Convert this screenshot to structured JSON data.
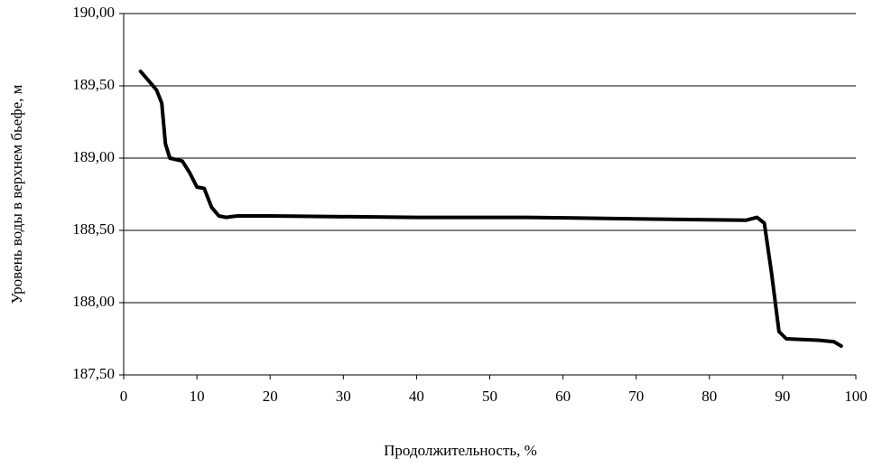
{
  "chart_data": {
    "type": "line",
    "x_label": "Продолжительность, %",
    "y_label": "Уровень воды в верхнем бьефе, м",
    "xlim": [
      0,
      100
    ],
    "xticks": [
      0,
      10,
      20,
      30,
      40,
      50,
      60,
      70,
      80,
      90,
      100
    ],
    "ylim": [
      187.5,
      190
    ],
    "yticks": [
      {
        "value": 187.5,
        "label": "187,50"
      },
      {
        "value": 188,
        "label": "188,00"
      },
      {
        "value": 188.5,
        "label": "188,50"
      },
      {
        "value": 189,
        "label": "189,00"
      },
      {
        "value": 189.5,
        "label": "189,50"
      },
      {
        "value": 190,
        "label": "190,00"
      }
    ],
    "grid": true,
    "series": [
      {
        "color": "#000000",
        "x": [
          2.3,
          3.5,
          4.5,
          5.2,
          5.7,
          6.3,
          8,
          9,
          10,
          11,
          12,
          13,
          14,
          15.5,
          20,
          40,
          55,
          70,
          85,
          86.5,
          87.5,
          88.5,
          89.5,
          90.5,
          95,
          97,
          98
        ],
        "values": [
          189.6,
          189.53,
          189.47,
          189.38,
          189.1,
          189.0,
          188.98,
          188.9,
          188.8,
          188.79,
          188.66,
          188.6,
          188.59,
          188.6,
          188.6,
          188.59,
          188.59,
          188.58,
          188.57,
          188.59,
          188.55,
          188.2,
          187.8,
          187.75,
          187.74,
          187.73,
          187.7
        ]
      }
    ]
  }
}
